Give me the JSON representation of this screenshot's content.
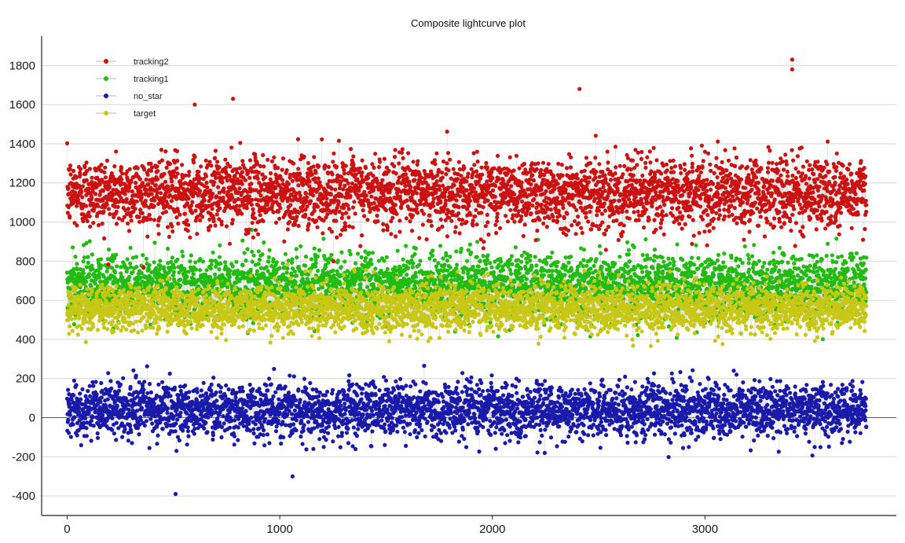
{
  "chart_data": {
    "type": "scatter",
    "title": "Composite lightcurve plot",
    "xlabel": "",
    "ylabel": "",
    "xlim": [
      -120,
      3900
    ],
    "ylim": [
      -500,
      1950
    ],
    "x_ticks": [
      0,
      1000,
      2000,
      3000
    ],
    "y_ticks": [
      -400,
      -200,
      0,
      200,
      400,
      600,
      800,
      1000,
      1200,
      1400,
      1600,
      1800
    ],
    "x_tick_labels": [
      "0",
      "1000",
      "2000",
      "3000"
    ],
    "y_tick_labels": [
      "-400",
      "-200",
      "0",
      "200",
      "400",
      "600",
      "800",
      "1000",
      "1200",
      "1400",
      "1600",
      "1800"
    ],
    "grid": true,
    "legend_placement": "top-left",
    "n_points": 3760,
    "connecting_line_color": "#c8c8c8",
    "series": [
      {
        "name": "tracking2",
        "color": "#cc1111",
        "typical_center": 1150,
        "typical_spread": 200,
        "notable_values": [
          {
            "x": 600,
            "y": 1600
          },
          {
            "x": 780,
            "y": 1630
          },
          {
            "x": 2410,
            "y": 1680
          },
          {
            "x": 3410,
            "y": 1830
          },
          {
            "x": 3410,
            "y": 1780
          }
        ]
      },
      {
        "name": "tracking1",
        "color": "#22bb11",
        "typical_center": 680,
        "typical_spread": 170
      },
      {
        "name": "no_star",
        "color": "#1a1aaa",
        "typical_center": 40,
        "typical_spread": 150,
        "notable_values": [
          {
            "x": 510,
            "y": -390
          },
          {
            "x": 1060,
            "y": -300
          }
        ]
      },
      {
        "name": "target",
        "color": "#c8c814",
        "typical_center": 560,
        "typical_spread": 130
      }
    ]
  }
}
